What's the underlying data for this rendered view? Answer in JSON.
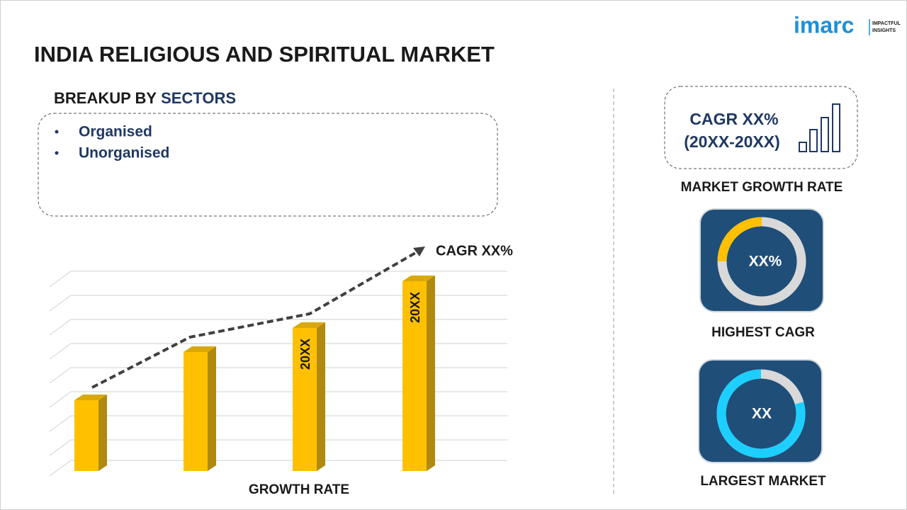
{
  "logo": {
    "name": "imarc",
    "tagline": [
      "IMPACTFUL",
      "INSIGHTS"
    ]
  },
  "header": {
    "title": "INDIA RELIGIOUS AND SPIRITUAL MARKET"
  },
  "breakup": {
    "heading": "BREAKUP BY",
    "heading_highlight": "SECTORS",
    "items": [
      "Organised",
      "Unorganised"
    ]
  },
  "growth_chart": {
    "cagr_label": "CAGR XX%",
    "bar_labels": [
      "20XX",
      "20XX"
    ],
    "axis_label": "GROWTH RATE"
  },
  "market_growth": {
    "cagr": "CAGR XX%",
    "period": "(20XX-20XX)",
    "caption": "MARKET GROWTH RATE"
  },
  "highest_cagr": {
    "value": "XX%",
    "caption": "HIGHEST CAGR"
  },
  "largest_market": {
    "value": "XX",
    "caption": "LARGEST MARKET"
  }
}
